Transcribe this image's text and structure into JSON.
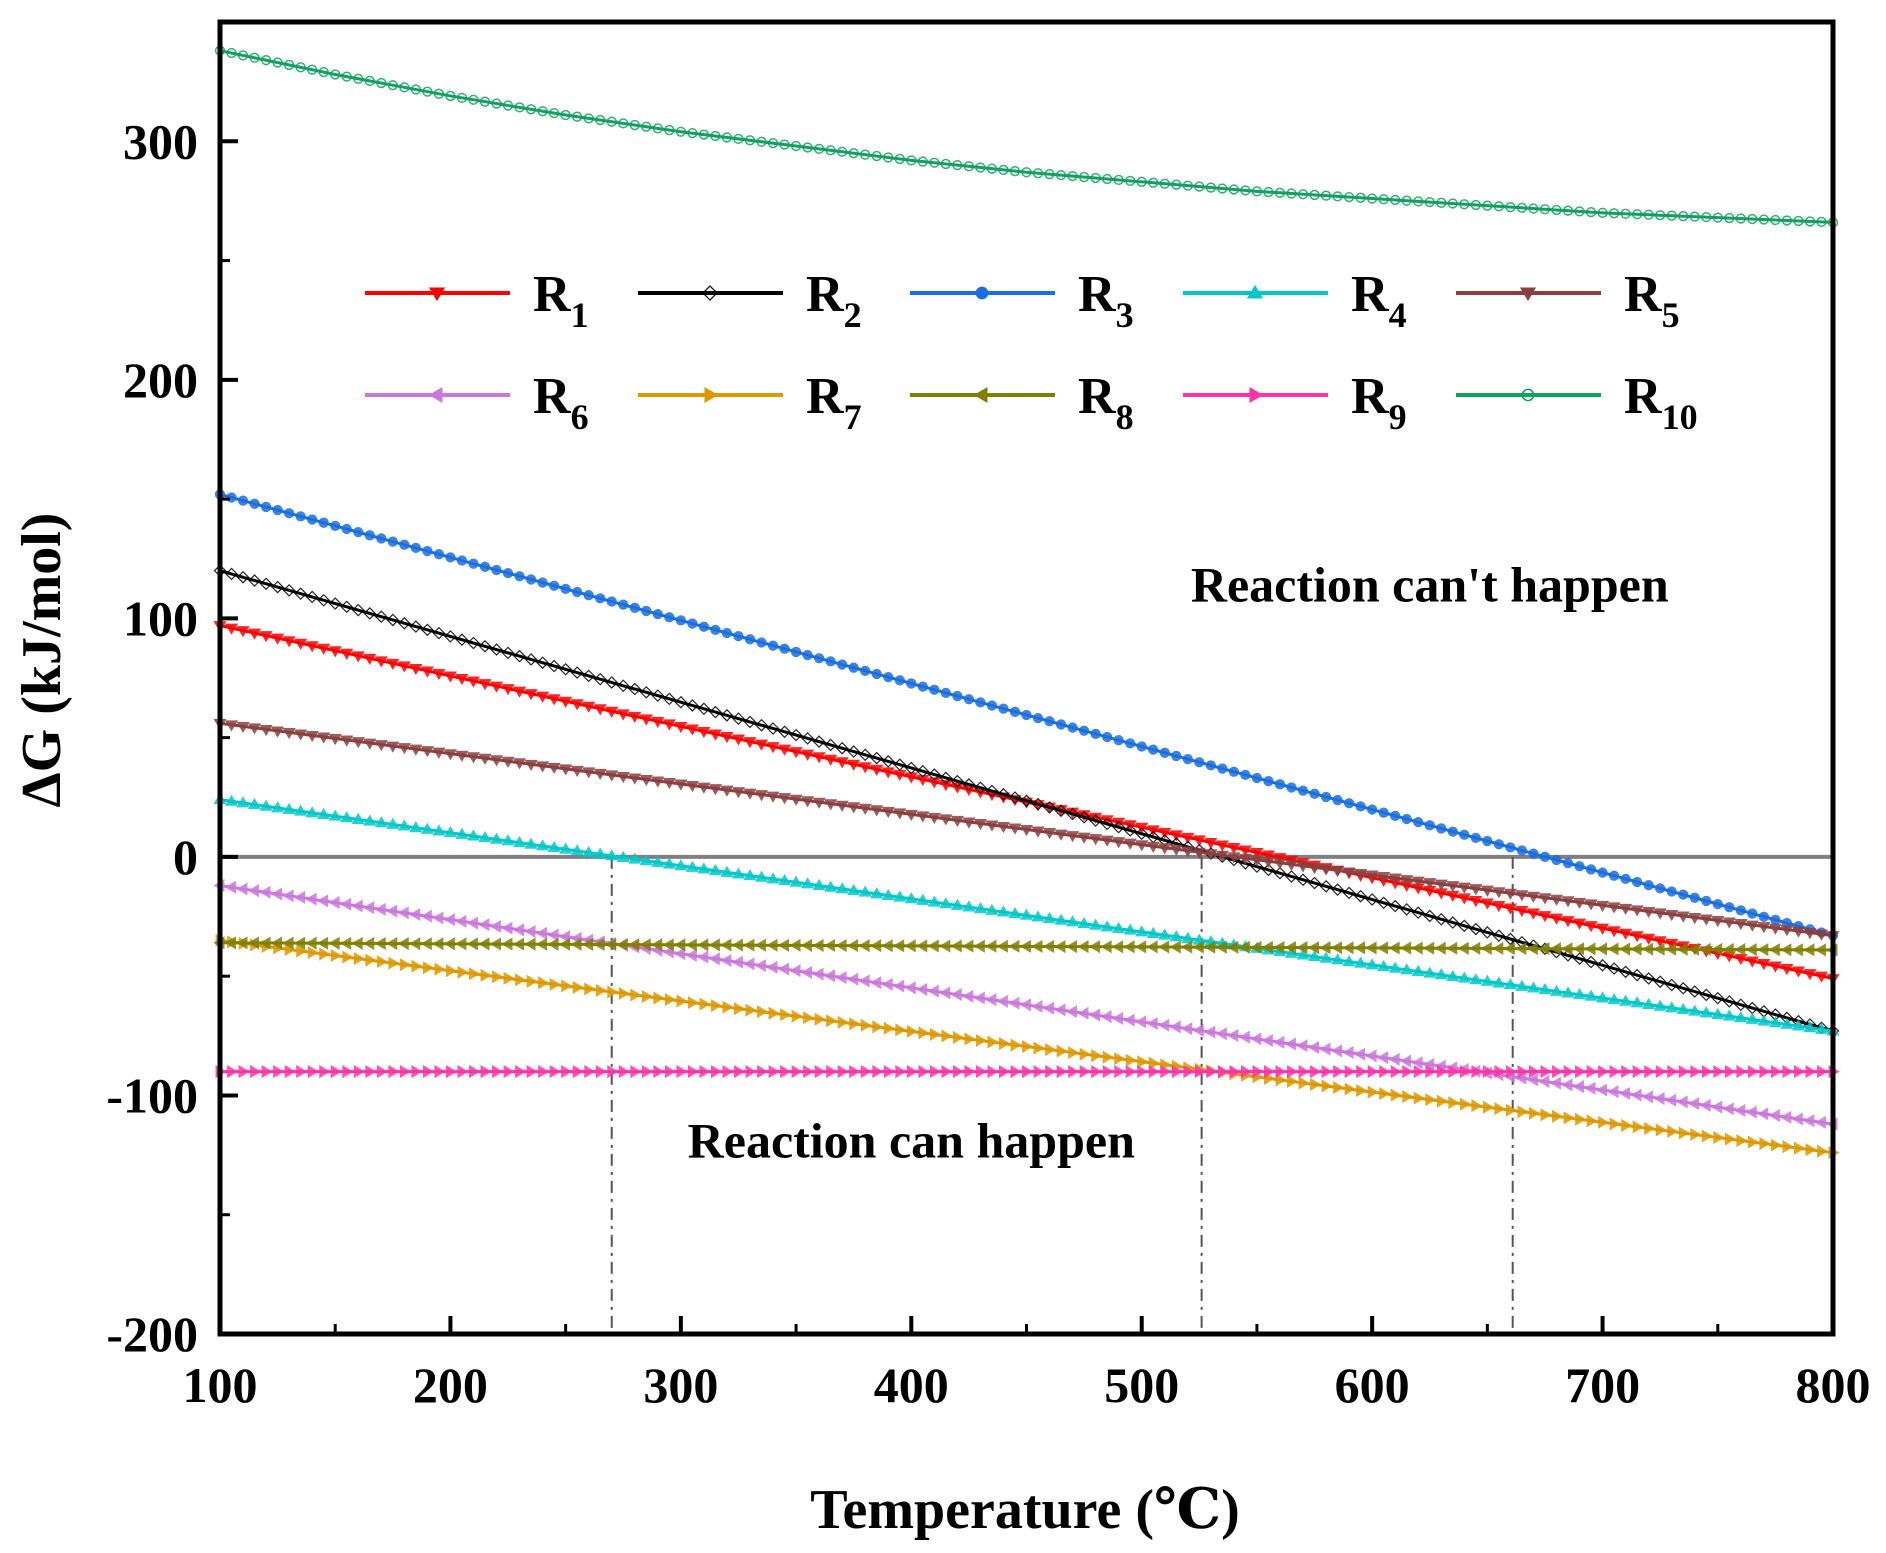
{
  "chart_data": {
    "type": "line",
    "xlabel": "Temperature (℃)",
    "ylabel": "ΔG (kJ/mol)",
    "xlim": [
      100,
      800
    ],
    "ylim": [
      -200,
      350
    ],
    "xticks": [
      "100",
      "200",
      "300",
      "400",
      "500",
      "600",
      "700",
      "800"
    ],
    "yticks": [
      "-200",
      "-100",
      "0",
      "100",
      "200",
      "300"
    ],
    "reference_line_y": 0,
    "guide_lines_x": [
      270,
      526,
      661
    ],
    "annotations": [
      {
        "text": "Reaction can't happen",
        "x": 625,
        "y": 107
      },
      {
        "text": "Reaction can happen",
        "x": 400,
        "y": -126
      }
    ],
    "series": [
      {
        "name": "R",
        "sub": "1",
        "color": "#ff0000",
        "marker": "triangle-down",
        "x": [
          100,
          800
        ],
        "y": [
          97,
          -51
        ]
      },
      {
        "name": "R",
        "sub": "2",
        "color": "#000000",
        "marker": "diamond",
        "x": [
          100,
          800
        ],
        "y": [
          120,
          -73
        ]
      },
      {
        "name": "R",
        "sub": "3",
        "color": "#1a6fe0",
        "marker": "circle",
        "x": [
          100,
          800
        ],
        "y": [
          152,
          -33
        ]
      },
      {
        "name": "R",
        "sub": "4",
        "color": "#00c8c8",
        "marker": "triangle-up",
        "x": [
          100,
          800
        ],
        "y": [
          24,
          -73
        ]
      },
      {
        "name": "R",
        "sub": "5",
        "color": "#8b4040",
        "marker": "triangle-down",
        "x": [
          100,
          800
        ],
        "y": [
          56,
          -33
        ]
      },
      {
        "name": "R",
        "sub": "6",
        "color": "#cc77dd",
        "marker": "triangle-left",
        "x": [
          100,
          800
        ],
        "y": [
          -12,
          -112
        ]
      },
      {
        "name": "R",
        "sub": "7",
        "color": "#dd9900",
        "marker": "triangle-right",
        "x": [
          100,
          800
        ],
        "y": [
          -35,
          -124
        ]
      },
      {
        "name": "R",
        "sub": "8",
        "color": "#808000",
        "marker": "triangle-left",
        "x": [
          100,
          800
        ],
        "y": [
          -36,
          -39
        ]
      },
      {
        "name": "R",
        "sub": "9",
        "color": "#ff33aa",
        "marker": "triangle-right",
        "x": [
          100,
          800
        ],
        "y": [
          -90,
          -90
        ]
      },
      {
        "name": "R",
        "sub": "10",
        "color": "#10a060",
        "marker": "circle-open",
        "x": [
          100,
          150,
          200,
          250,
          300,
          350,
          400,
          450,
          500,
          550,
          600,
          650,
          700,
          750,
          800
        ],
        "y": [
          338,
          328,
          319,
          311,
          304,
          298,
          292,
          287,
          283,
          279,
          276,
          273,
          270,
          268,
          266
        ]
      }
    ]
  }
}
